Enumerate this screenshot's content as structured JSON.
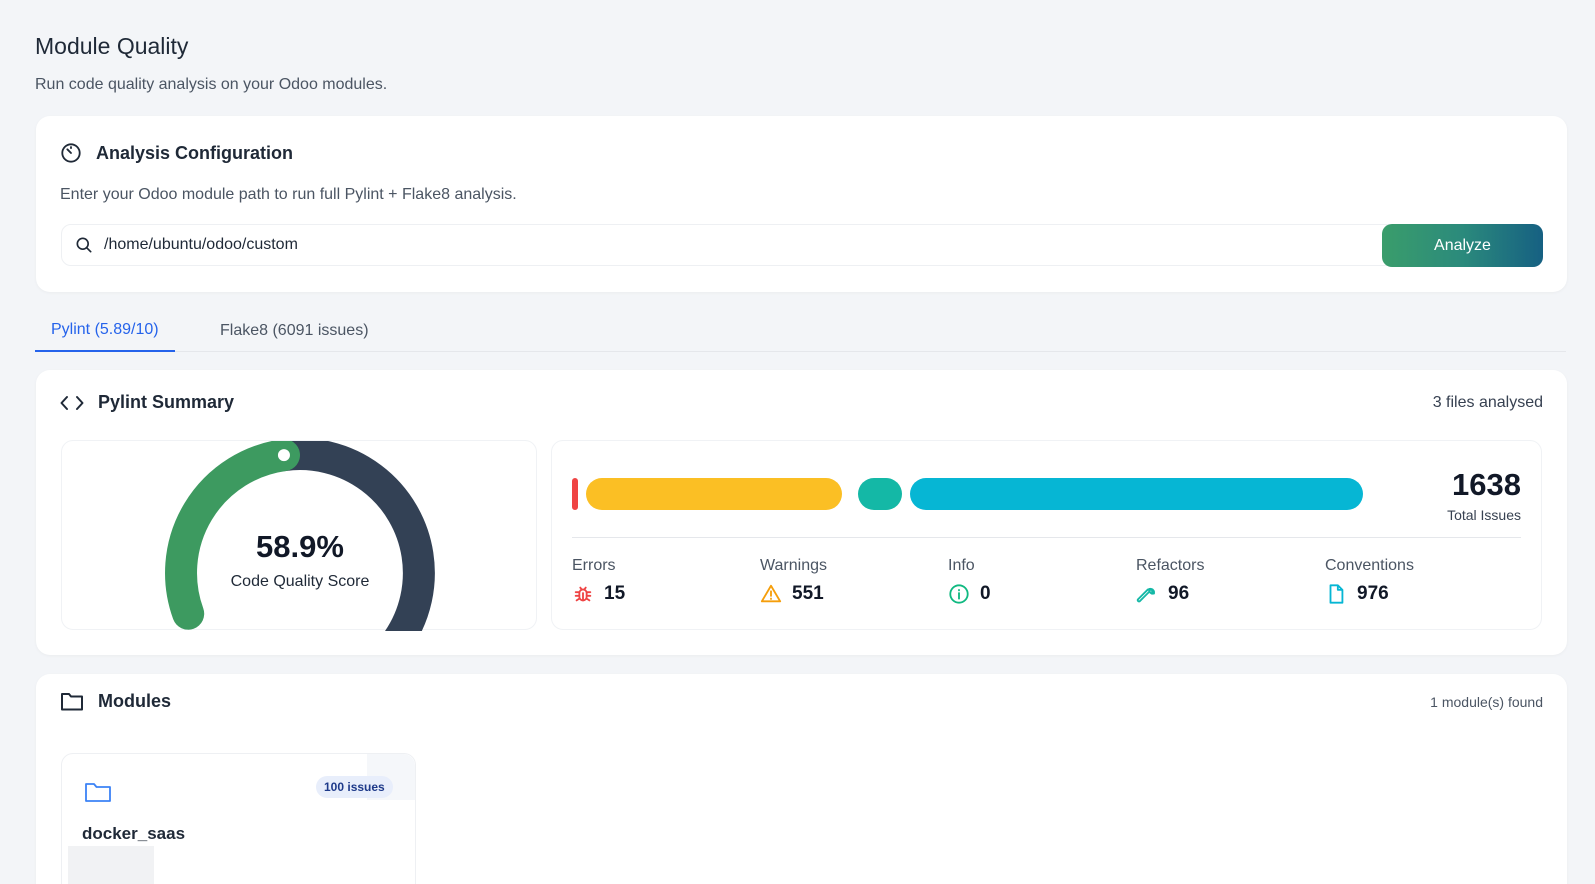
{
  "header": {
    "title": "Module Quality",
    "subtitle": "Run code quality analysis on your Odoo modules."
  },
  "config": {
    "title": "Analysis Configuration",
    "description": "Enter your Odoo module path to run full Pylint + Flake8 analysis.",
    "path_value": "/home/ubuntu/odoo/custom",
    "analyze_label": "Analyze"
  },
  "tabs": [
    {
      "label": "Pylint (5.89/10)",
      "active": true
    },
    {
      "label": "Flake8 (6091 issues)",
      "active": false
    }
  ],
  "summary": {
    "title": "Pylint Summary",
    "files_analysed": "3 files analysed",
    "score_value": "58.9%",
    "score_label": "Code Quality Score",
    "score_fraction": 0.589,
    "total_value": "1638",
    "total_label": "Total Issues",
    "stats": [
      {
        "label": "Errors",
        "value": "15",
        "icon": "bug-icon",
        "color": "#ef4444"
      },
      {
        "label": "Warnings",
        "value": "551",
        "icon": "warning-icon",
        "color": "#fbbf24"
      },
      {
        "label": "Info",
        "value": "0",
        "icon": "info-icon",
        "color": "#10b981"
      },
      {
        "label": "Refactors",
        "value": "96",
        "icon": "wrench-icon",
        "color": "#14b8a6"
      },
      {
        "label": "Conventions",
        "value": "976",
        "icon": "document-icon",
        "color": "#06b6d4"
      }
    ],
    "colors": {
      "gauge_fill": "#3d9a60",
      "gauge_track": "#334155",
      "errors": "#ef4444",
      "warnings": "#fbbf24",
      "refactors": "#14b8a6",
      "conventions": "#06b6d4"
    }
  },
  "modules": {
    "title": "Modules",
    "found": "1 module(s) found",
    "items": [
      {
        "name": "docker_saas",
        "badge": "100 issues"
      }
    ]
  }
}
